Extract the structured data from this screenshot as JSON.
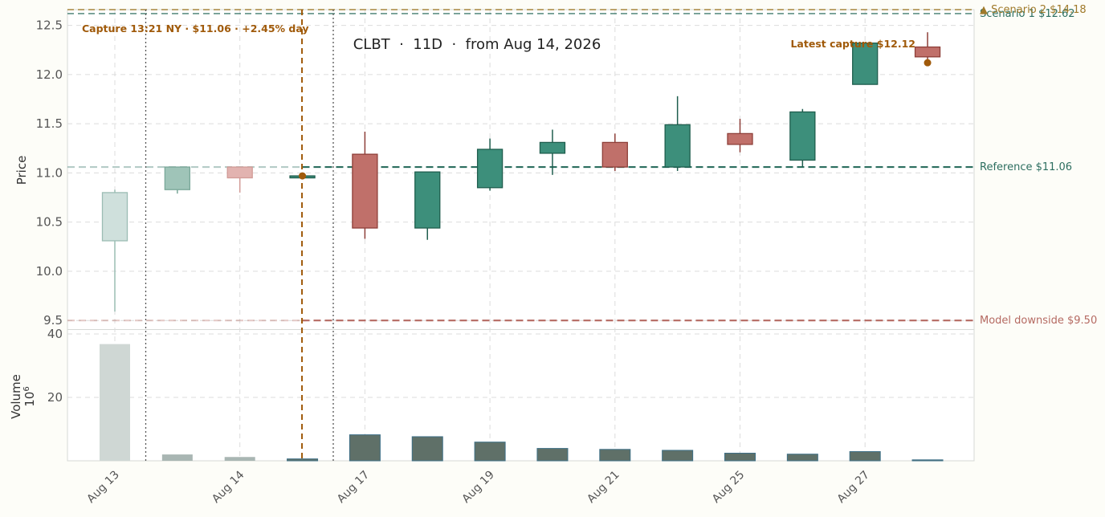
{
  "chart_data": {
    "type": "candlestick",
    "title": "CLBT  ·  11D  ·  from Aug 14, 2026",
    "price_axis": {
      "label": "Price",
      "ylim": [
        9.42,
        12.66
      ],
      "ticks": [
        "9.5",
        "10.0",
        "10.5",
        "11.0",
        "11.5",
        "12.0",
        "12.5"
      ],
      "tick_values": [
        9.5,
        10.0,
        10.5,
        11.0,
        11.5,
        12.0,
        12.5
      ]
    },
    "volume_axis": {
      "label": "Volume",
      "scale_label": "10",
      "scale_exp": "6",
      "ylim": [
        0,
        41
      ],
      "ticks": [
        "20",
        "40"
      ],
      "tick_values": [
        20,
        40
      ]
    },
    "x_tick_labels": [
      {
        "label": "Aug 13",
        "index": 0
      },
      {
        "label": "Aug 14",
        "index": 2
      },
      {
        "label": "Aug 17",
        "index": 4
      },
      {
        "label": "Aug 19",
        "index": 6
      },
      {
        "label": "Aug 21",
        "index": 8
      },
      {
        "label": "Aug 25",
        "index": 10
      },
      {
        "label": "Aug 27",
        "index": 12
      }
    ],
    "candles": [
      {
        "o": 10.31,
        "h": 10.83,
        "l": 9.59,
        "c": 10.8,
        "v": 36.8,
        "faded": true
      },
      {
        "o": 10.83,
        "h": 11.06,
        "l": 10.79,
        "c": 11.06,
        "v": 2.0,
        "faded": true
      },
      {
        "o": 11.06,
        "h": 11.06,
        "l": 10.8,
        "c": 10.95,
        "v": 1.2,
        "faded": true
      },
      {
        "o": 10.96,
        "h": 10.98,
        "l": 10.95,
        "c": 10.97,
        "v": 0.6
      },
      {
        "o": 11.19,
        "h": 11.42,
        "l": 10.33,
        "c": 10.44,
        "v": 8.2
      },
      {
        "o": 10.44,
        "h": 11.01,
        "l": 10.32,
        "c": 11.01,
        "v": 7.6
      },
      {
        "o": 10.85,
        "h": 11.35,
        "l": 10.82,
        "c": 11.24,
        "v": 5.9
      },
      {
        "o": 11.2,
        "h": 11.44,
        "l": 10.98,
        "c": 11.31,
        "v": 3.9
      },
      {
        "o": 11.31,
        "h": 11.4,
        "l": 11.02,
        "c": 11.06,
        "v": 3.6
      },
      {
        "o": 11.06,
        "h": 11.78,
        "l": 11.02,
        "c": 11.49,
        "v": 3.3
      },
      {
        "o": 11.4,
        "h": 11.55,
        "l": 11.21,
        "c": 11.29,
        "v": 2.4
      },
      {
        "o": 11.13,
        "h": 11.65,
        "l": 11.06,
        "c": 11.62,
        "v": 2.1
      },
      {
        "o": 11.9,
        "h": 12.32,
        "l": 11.9,
        "c": 12.32,
        "v": 2.9
      },
      {
        "o": 12.28,
        "h": 12.43,
        "l": 12.12,
        "c": 12.18,
        "v": 0.3
      }
    ],
    "colors": {
      "up": "#3d8f7b",
      "up_edge": "#1f5e4e",
      "down": "#c0706a",
      "down_edge": "#8e3f39",
      "faded_up": "#cfe0dc",
      "faded_down": "#e2b3b0",
      "accent": "#a05a0a",
      "volume": "#5f7068",
      "volume_faded": "#cfd7d4"
    },
    "reference_lines": [
      {
        "label": "Reference $11.06",
        "value": 11.06,
        "color": "#2c6e5f"
      },
      {
        "label": "Model downside $9.50",
        "value": 9.5,
        "color": "#b56a62"
      },
      {
        "label": "Scenario 1 $12.62",
        "value": 12.62,
        "color": "#2c6e5f"
      },
      {
        "label": "Scenario 2 $14.18",
        "value": 12.66,
        "color": "#a07a2a",
        "marker": "▲"
      }
    ],
    "annotations": [
      {
        "label": "Capture 13:21 NY · $11.06 · +2.45% day",
        "index": 3,
        "price": 10.97
      },
      {
        "label": "Latest capture $12.12",
        "index": 13,
        "price": 12.12
      }
    ],
    "session_bounds": [
      0.5,
      3.5
    ],
    "grid": true
  }
}
